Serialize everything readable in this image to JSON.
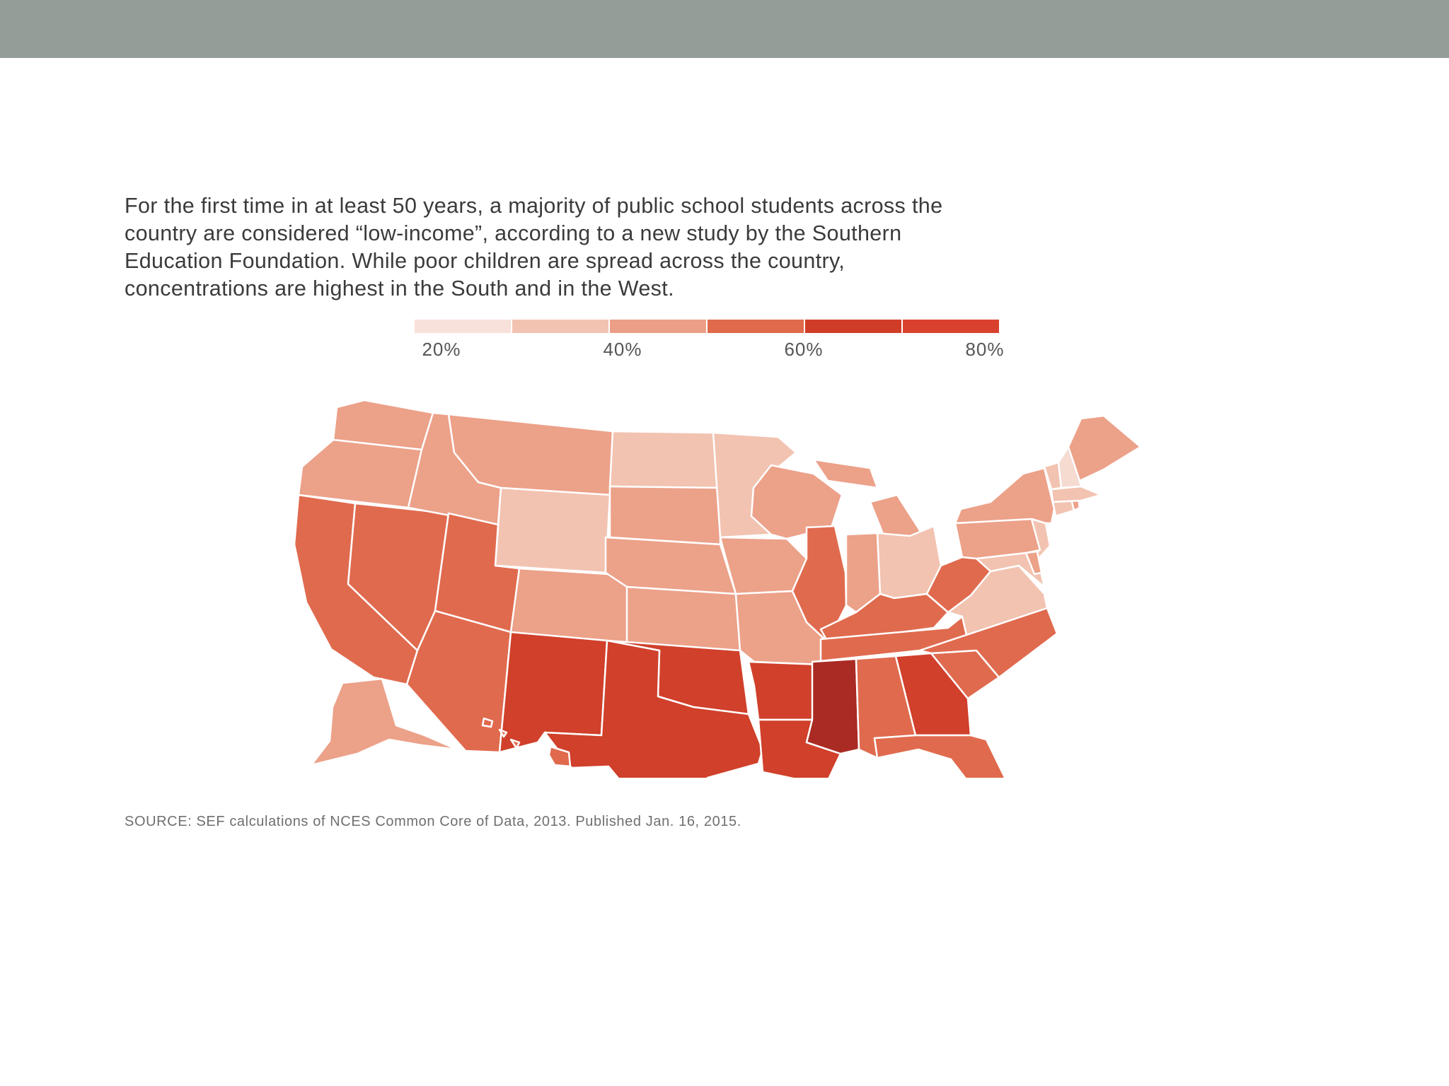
{
  "intro_lines": [
    "For the first time in at least 50 years, a majority of public school students across the",
    "country are considered “low-income”, according to a new study by the Southern",
    "Education Foundation. While poor children are spread across the country,",
    "concentrations are highest in the South and in the West."
  ],
  "legend": {
    "colors": [
      "#f8e1da",
      "#f3c3b2",
      "#eb9f86",
      "#df6a4c",
      "#cf3d28",
      "#d9412e"
    ],
    "labels": [
      "20%",
      "40%",
      "60%",
      "80%"
    ]
  },
  "source": "SOURCE: SEF calculations of NCES Common Core of Data, 2013. Published Jan. 16, 2015.",
  "map_palette": {
    "very_light": "#f6dbd1",
    "light": "#f2c3b1",
    "medium": "#eca189",
    "dark": "#e06a4e",
    "darker": "#d0402b",
    "darkest": "#a92b24"
  },
  "states": [
    {
      "name": "Washington",
      "level": "medium"
    },
    {
      "name": "Oregon",
      "level": "medium"
    },
    {
      "name": "California",
      "level": "dark"
    },
    {
      "name": "Nevada",
      "level": "dark"
    },
    {
      "name": "Idaho",
      "level": "medium"
    },
    {
      "name": "Montana",
      "level": "medium"
    },
    {
      "name": "Wyoming",
      "level": "light"
    },
    {
      "name": "Utah",
      "level": "dark"
    },
    {
      "name": "Arizona",
      "level": "dark"
    },
    {
      "name": "Colorado",
      "level": "medium"
    },
    {
      "name": "New Mexico",
      "level": "darker"
    },
    {
      "name": "North Dakota",
      "level": "light"
    },
    {
      "name": "South Dakota",
      "level": "medium"
    },
    {
      "name": "Nebraska",
      "level": "medium"
    },
    {
      "name": "Kansas",
      "level": "medium"
    },
    {
      "name": "Oklahoma",
      "level": "darker"
    },
    {
      "name": "Texas",
      "level": "darker"
    },
    {
      "name": "Minnesota",
      "level": "light"
    },
    {
      "name": "Iowa",
      "level": "medium"
    },
    {
      "name": "Missouri",
      "level": "medium"
    },
    {
      "name": "Arkansas",
      "level": "darker"
    },
    {
      "name": "Louisiana",
      "level": "darker"
    },
    {
      "name": "Wisconsin",
      "level": "medium"
    },
    {
      "name": "Illinois",
      "level": "dark"
    },
    {
      "name": "Michigan",
      "level": "medium"
    },
    {
      "name": "Indiana",
      "level": "medium"
    },
    {
      "name": "Ohio",
      "level": "light"
    },
    {
      "name": "Kentucky",
      "level": "dark"
    },
    {
      "name": "Tennessee",
      "level": "dark"
    },
    {
      "name": "Mississippi",
      "level": "darkest"
    },
    {
      "name": "Alabama",
      "level": "dark"
    },
    {
      "name": "Georgia",
      "level": "darker"
    },
    {
      "name": "Florida",
      "level": "dark"
    },
    {
      "name": "South Carolina",
      "level": "dark"
    },
    {
      "name": "North Carolina",
      "level": "dark"
    },
    {
      "name": "Virginia",
      "level": "light"
    },
    {
      "name": "West Virginia",
      "level": "dark"
    },
    {
      "name": "Maryland",
      "level": "light"
    },
    {
      "name": "Delaware",
      "level": "medium"
    },
    {
      "name": "Pennsylvania",
      "level": "medium"
    },
    {
      "name": "New Jersey",
      "level": "light"
    },
    {
      "name": "New York",
      "level": "medium"
    },
    {
      "name": "Connecticut",
      "level": "light"
    },
    {
      "name": "Rhode Island",
      "level": "medium"
    },
    {
      "name": "Massachusetts",
      "level": "light"
    },
    {
      "name": "Vermont",
      "level": "light"
    },
    {
      "name": "New Hampshire",
      "level": "very_light"
    },
    {
      "name": "Maine",
      "level": "medium"
    },
    {
      "name": "Alaska",
      "level": "medium"
    },
    {
      "name": "Hawaii",
      "level": "dark"
    }
  ]
}
